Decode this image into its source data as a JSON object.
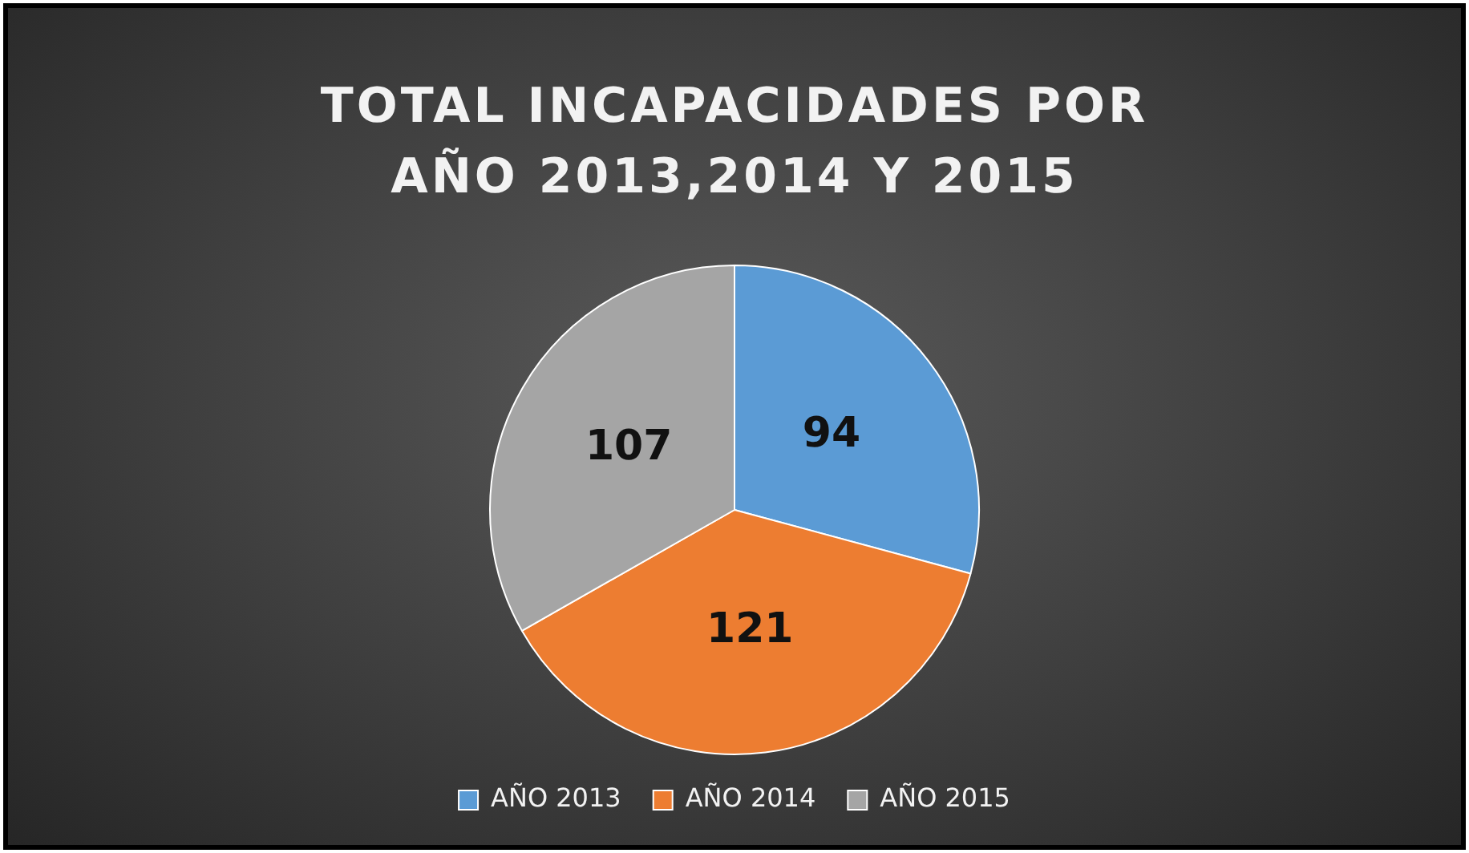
{
  "chart_data": {
    "type": "pie",
    "title": "TOTAL INCAPACIDADES POR AÑO 2013,2014 Y 2015",
    "categories": [
      "AÑO 2013",
      "AÑO 2014",
      "AÑO 2015"
    ],
    "values": [
      94,
      121,
      107
    ],
    "colors": [
      "#5b9bd5",
      "#ed7d31",
      "#a5a5a5"
    ],
    "data_labels": true,
    "legend": "bottom"
  }
}
